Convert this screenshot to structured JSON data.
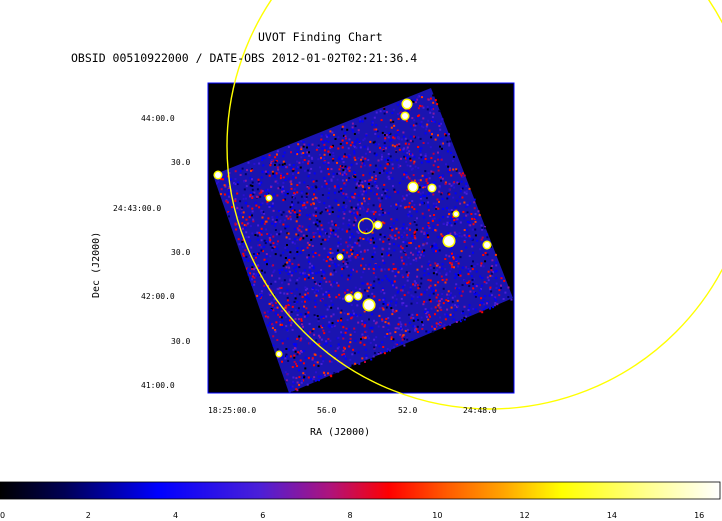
{
  "chart": {
    "title": "UVOT Finding Chart",
    "subtitle": "OBSID 00510922000 / DATE-OBS 2012-01-02T02:21:36.4",
    "xlabel": "RA (J2000)",
    "ylabel": "Dec (J2000)",
    "x_ticks": [
      "18:25:00.0",
      "56.0",
      "52.0",
      "24:48.0"
    ],
    "y_ticks": [
      "44:00.0",
      "30.0",
      "24:43:00.0",
      "30.0",
      "42:00.0",
      "30.0",
      "41:00.0"
    ]
  },
  "chart_data": {
    "type": "heatmap",
    "title": "UVOT Finding Chart",
    "subtitle": "OBSID 00510922000 / DATE-OBS 2012-01-02T02:21:36.4",
    "xlabel": "RA (J2000)",
    "ylabel": "Dec (J2000)",
    "colorbar": {
      "ticks": [
        "0",
        "2",
        "4",
        "6",
        "8",
        "10",
        "12",
        "14",
        "16"
      ],
      "range": [
        0,
        16.5
      ],
      "colormap": [
        "#000000",
        "#0000ff",
        "#ff0000",
        "#ffff00",
        "#ffffff"
      ]
    },
    "overlays": [
      "small source circle at center",
      "large error circle (yellow)"
    ],
    "colors": {
      "overlay": "#ffff00",
      "frame": "#0000ff"
    }
  }
}
